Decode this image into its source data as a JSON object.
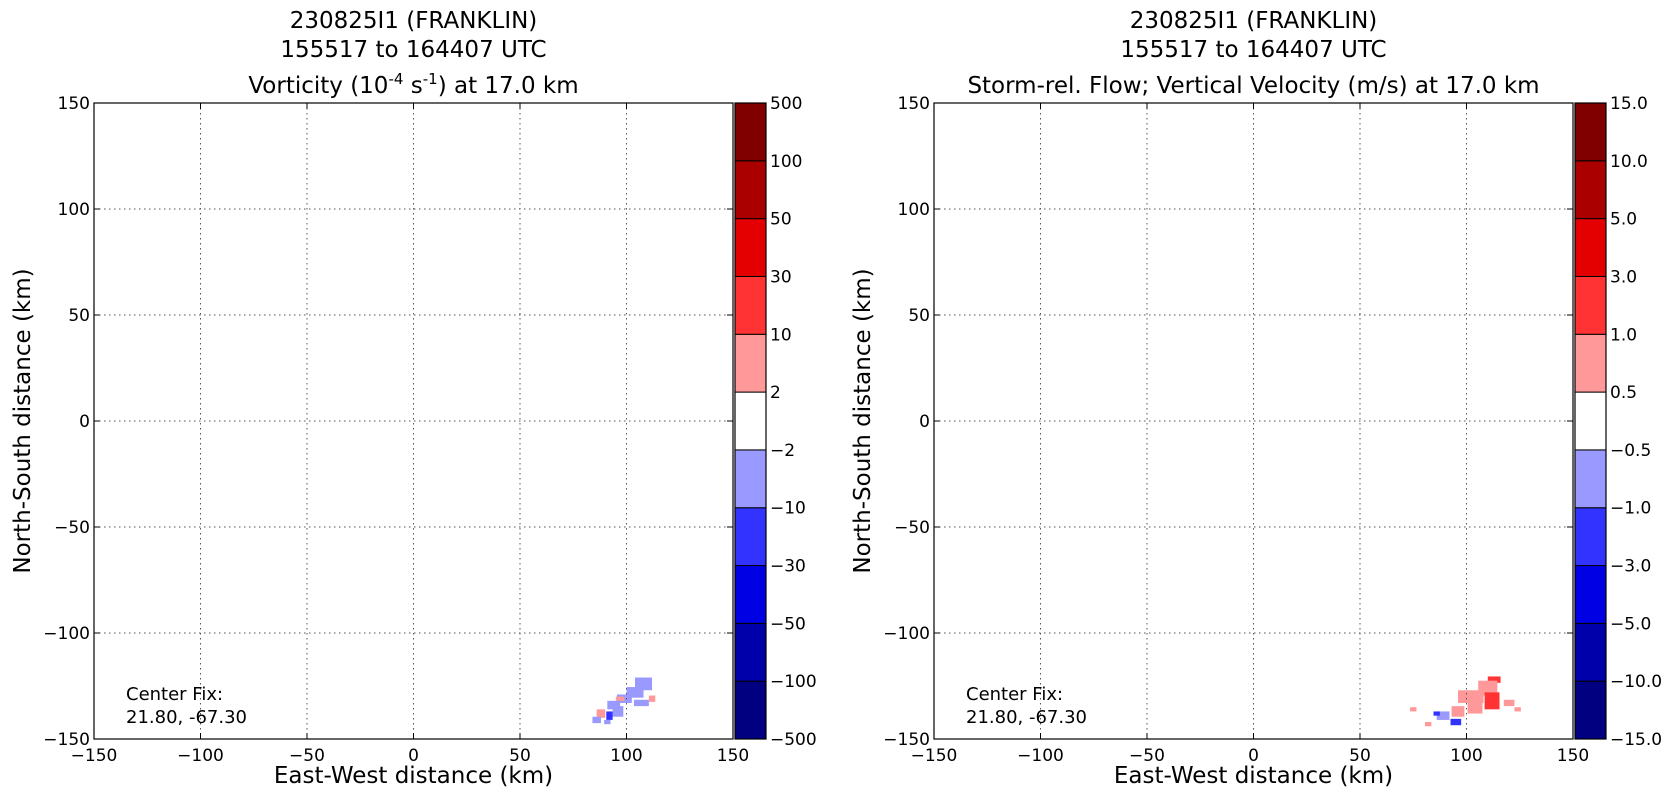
{
  "chart_data": [
    {
      "type": "heatmap",
      "title_line1": "230825I1 (FRANKLIN)",
      "title_line2": "155517 to 164407 UTC",
      "title_line3_prefix": "Vorticity (10",
      "title_line3_sup1": "-4",
      "title_line3_mid": " s",
      "title_line3_sup2": "-1",
      "title_line3_suffix": ") at 17.0 km",
      "xlabel": "East-West distance (km)",
      "ylabel": "North-South distance (km)",
      "xlim": [
        -150,
        150
      ],
      "ylim": [
        -150,
        150
      ],
      "xticks": [
        -150,
        -100,
        -50,
        0,
        50,
        100,
        150
      ],
      "yticks": [
        -150,
        -100,
        -50,
        0,
        50,
        100,
        150
      ],
      "xtick_labels": [
        "−150",
        "−100",
        "−50",
        "0",
        "50",
        "100",
        "150"
      ],
      "ytick_labels": [
        "−150",
        "−100",
        "−50",
        "0",
        "50",
        "100",
        "150"
      ],
      "grid": true,
      "annotation_line1": "Center Fix:",
      "annotation_line2": "21.80, -67.30",
      "colorbar": {
        "levels": [
          "−500",
          "−100",
          "−50",
          "−30",
          "−10",
          "−2",
          "2",
          "10",
          "30",
          "50",
          "100",
          "500"
        ],
        "colors": [
          "#000080",
          "#0000aa",
          "#0000e4",
          "#3333ff",
          "#9999ff",
          "#ffffff",
          "#ff9999",
          "#ff3333",
          "#e40000",
          "#aa0000",
          "#800000"
        ]
      },
      "features": [
        {
          "x": 108,
          "y": -124,
          "w": 8,
          "h": 6,
          "color": "#9999ff"
        },
        {
          "x": 104,
          "y": -128,
          "w": 8,
          "h": 5,
          "color": "#9999ff"
        },
        {
          "x": 99,
          "y": -131,
          "w": 7,
          "h": 4,
          "color": "#9999ff"
        },
        {
          "x": 97,
          "y": -131,
          "w": 4,
          "h": 2,
          "color": "#ff9999"
        },
        {
          "x": 107,
          "y": -133,
          "w": 7,
          "h": 3,
          "color": "#9999ff"
        },
        {
          "x": 112,
          "y": -131,
          "w": 3,
          "h": 3,
          "color": "#ff9999"
        },
        {
          "x": 94,
          "y": -134,
          "w": 6,
          "h": 4,
          "color": "#9999ff"
        },
        {
          "x": 96,
          "y": -137,
          "w": 5,
          "h": 5,
          "color": "#9999ff"
        },
        {
          "x": 92,
          "y": -139,
          "w": 3,
          "h": 4,
          "color": "#3333ff"
        },
        {
          "x": 88,
          "y": -138,
          "w": 4,
          "h": 4,
          "color": "#ff9999"
        },
        {
          "x": 86,
          "y": -141,
          "w": 4,
          "h": 3,
          "color": "#9999ff"
        },
        {
          "x": 91,
          "y": -142,
          "w": 3,
          "h": 2,
          "color": "#9999ff"
        }
      ]
    },
    {
      "type": "heatmap",
      "title_line1": "230825I1 (FRANKLIN)",
      "title_line2": "155517 to 164407 UTC",
      "title_line3": "Storm-rel. Flow; Vertical Velocity (m/s) at 17.0 km",
      "xlabel": "East-West distance (km)",
      "ylabel": "North-South distance (km)",
      "xlim": [
        -150,
        150
      ],
      "ylim": [
        -150,
        150
      ],
      "xticks": [
        -150,
        -100,
        -50,
        0,
        50,
        100,
        150
      ],
      "yticks": [
        -150,
        -100,
        -50,
        0,
        50,
        100,
        150
      ],
      "xtick_labels": [
        "−150",
        "−100",
        "−50",
        "0",
        "50",
        "100",
        "150"
      ],
      "ytick_labels": [
        "−150",
        "−100",
        "−50",
        "0",
        "50",
        "100",
        "150"
      ],
      "grid": true,
      "annotation_line1": "Center Fix:",
      "annotation_line2": "21.80, -67.30",
      "colorbar": {
        "levels": [
          "−15.0",
          "−10.0",
          "−5.0",
          "−3.0",
          "−1.0",
          "−0.5",
          "0.5",
          "1.0",
          "3.0",
          "5.0",
          "10.0",
          "15.0"
        ],
        "colors": [
          "#000080",
          "#0000aa",
          "#0000e4",
          "#3333ff",
          "#9999ff",
          "#ffffff",
          "#ff9999",
          "#ff3333",
          "#e40000",
          "#aa0000",
          "#800000"
        ]
      },
      "features": [
        {
          "x": 113,
          "y": -122,
          "w": 6,
          "h": 3,
          "color": "#ff3333"
        },
        {
          "x": 110,
          "y": -126,
          "w": 9,
          "h": 7,
          "color": "#ff9999"
        },
        {
          "x": 102,
          "y": -130,
          "w": 12,
          "h": 6,
          "color": "#ff9999"
        },
        {
          "x": 112,
          "y": -132,
          "w": 7,
          "h": 8,
          "color": "#ff3333"
        },
        {
          "x": 104,
          "y": -135,
          "w": 7,
          "h": 6,
          "color": "#ff9999"
        },
        {
          "x": 120,
          "y": -133,
          "w": 5,
          "h": 3,
          "color": "#ff9999"
        },
        {
          "x": 96,
          "y": -137,
          "w": 6,
          "h": 5,
          "color": "#ff9999"
        },
        {
          "x": 75,
          "y": -136,
          "w": 3,
          "h": 2,
          "color": "#ff9999"
        },
        {
          "x": 124,
          "y": -136,
          "w": 3,
          "h": 2,
          "color": "#ff9999"
        },
        {
          "x": 89,
          "y": -139,
          "w": 6,
          "h": 4,
          "color": "#9999ff"
        },
        {
          "x": 86,
          "y": -138,
          "w": 3,
          "h": 2,
          "color": "#3333ff"
        },
        {
          "x": 95,
          "y": -142,
          "w": 5,
          "h": 3,
          "color": "#3333ff"
        },
        {
          "x": 82,
          "y": -143,
          "w": 3,
          "h": 2,
          "color": "#ff9999"
        }
      ]
    }
  ]
}
